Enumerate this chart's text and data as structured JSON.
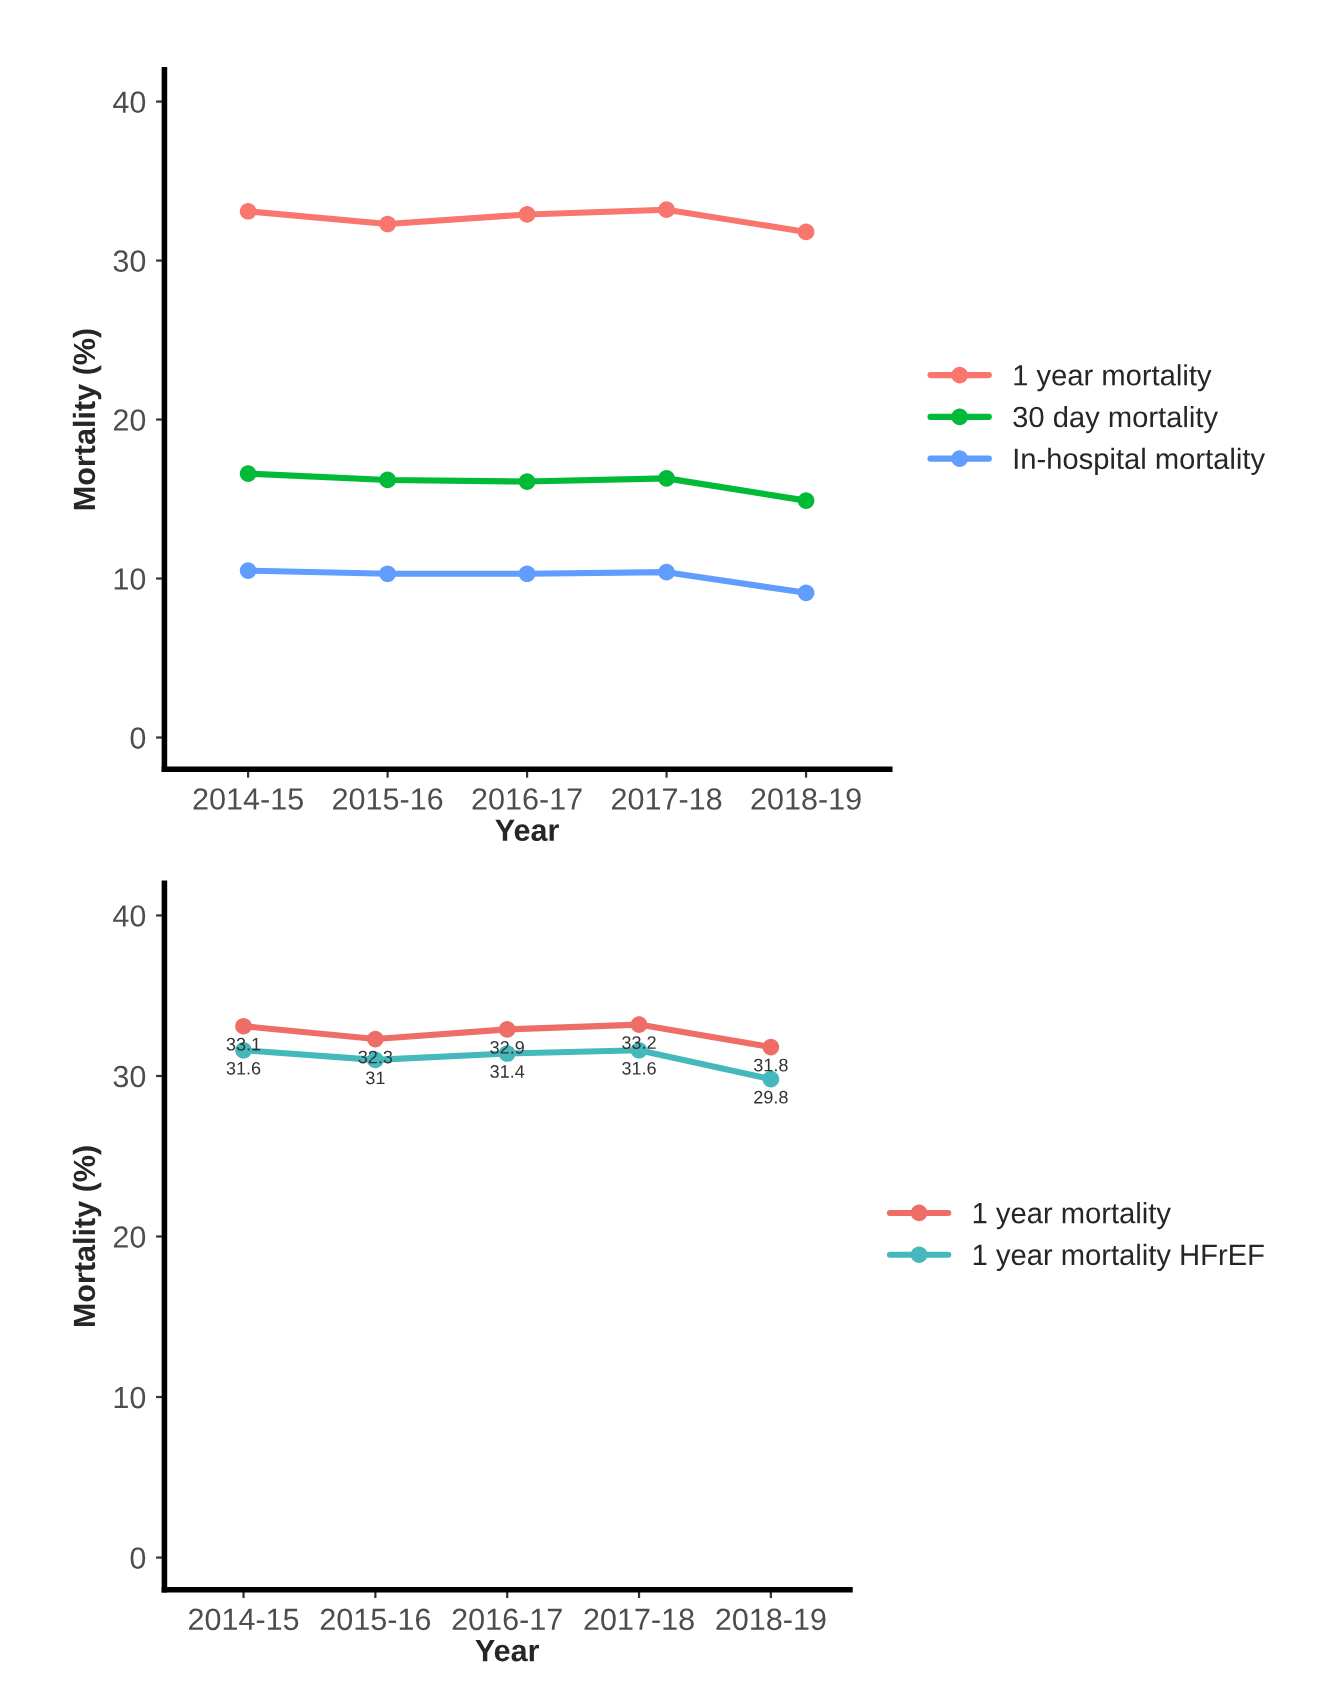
{
  "chart_data": [
    {
      "type": "line",
      "xlabel": "Year",
      "ylabel": "Mortality (%)",
      "categories": [
        "2014-15",
        "2015-16",
        "2016-17",
        "2017-18",
        "2018-19"
      ],
      "ylim": [
        -2,
        42
      ],
      "yticks": [
        0,
        10,
        20,
        30,
        40
      ],
      "grid": false,
      "legend": "right",
      "marker": "circle",
      "line_style": "solid",
      "series": [
        {
          "name": "1 year mortality",
          "color": "#f8766d",
          "values": [
            33.1,
            32.3,
            32.9,
            33.2,
            31.8
          ]
        },
        {
          "name": "30 day mortality",
          "color": "#00ba38",
          "values": [
            16.6,
            16.2,
            16.1,
            16.3,
            14.9
          ]
        },
        {
          "name": "In-hospital mortality",
          "color": "#619cff",
          "values": [
            10.5,
            10.3,
            10.3,
            10.4,
            9.1
          ]
        }
      ]
    },
    {
      "type": "line",
      "xlabel": "Year",
      "ylabel": "Mortality (%)",
      "categories": [
        "2014-15",
        "2015-16",
        "2016-17",
        "2017-18",
        "2018-19"
      ],
      "ylim": [
        -2,
        42
      ],
      "yticks": [
        0,
        10,
        20,
        30,
        40
      ],
      "grid": false,
      "legend": "right",
      "marker": "circle",
      "line_style": "solid",
      "data_labels": true,
      "series": [
        {
          "name": "1 year mortality",
          "color": "#ee6e67",
          "values": [
            33.1,
            32.3,
            32.9,
            33.2,
            31.8
          ]
        },
        {
          "name": "1 year mortality HFrEF",
          "color": "#45b8bc",
          "values": [
            31.6,
            31,
            31.4,
            31.6,
            29.8
          ]
        }
      ]
    }
  ]
}
